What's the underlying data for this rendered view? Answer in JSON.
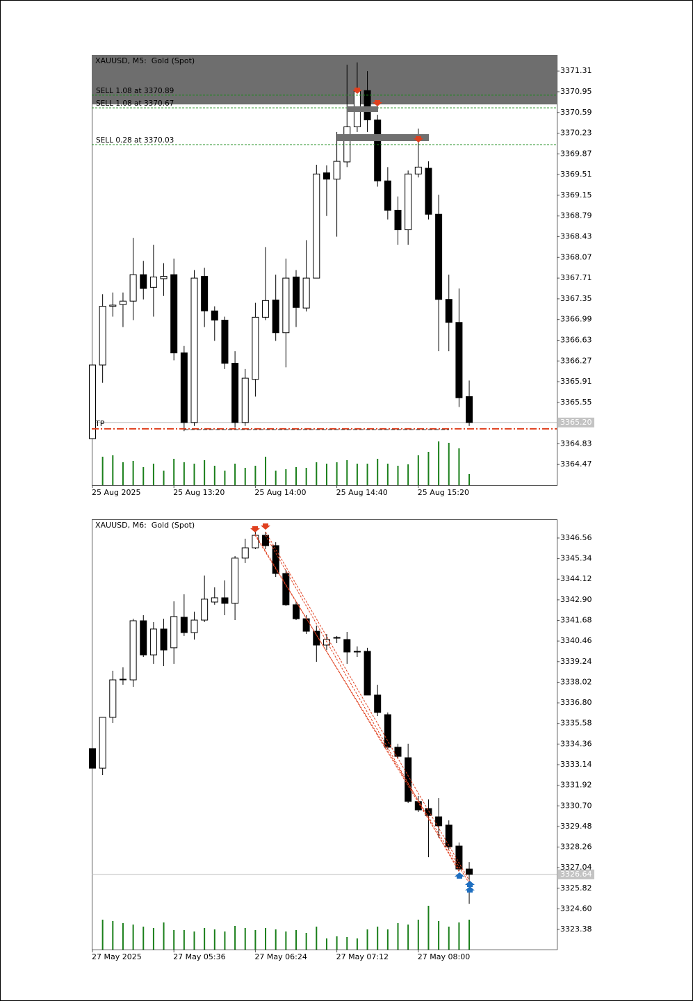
{
  "chart_data": [
    {
      "type": "candlestick",
      "title": "XAUUSD, M5:  Gold (Spot)",
      "categories": [
        "25 Aug 2025",
        null,
        null,
        null,
        null,
        null,
        null,
        null,
        "25 Aug 13:20",
        null,
        null,
        null,
        null,
        null,
        null,
        null,
        "25 Aug 14:00",
        null,
        null,
        null,
        null,
        null,
        null,
        null,
        "25 Aug 14:40",
        null,
        null,
        null,
        null,
        null,
        null,
        null,
        "25 Aug 15:20",
        null,
        null,
        null,
        null,
        null
      ],
      "open": [
        3364.92,
        3366.2,
        3367.22,
        3367.25,
        3367.31,
        3367.77,
        3367.55,
        3367.7,
        3367.77,
        3366.41,
        3365.2,
        3367.74,
        3367.14,
        3366.98,
        3366.23,
        3365.2,
        3365.95,
        3367.03,
        3367.33,
        3366.76,
        3367.73,
        3367.19,
        3367.71,
        3369.54,
        3369.43,
        3369.73,
        3370.34,
        3370.97,
        3370.46,
        3369.4,
        3368.89,
        3368.55,
        3369.52,
        3369.62,
        3368.82,
        3367.34,
        3366.94,
        3365.65
      ],
      "high": [
        3366.2,
        3367.43,
        3367.46,
        3367.46,
        3368.41,
        3368.01,
        3368.29,
        3367.97,
        3368.05,
        3366.53,
        3367.85,
        3367.89,
        3367.22,
        3367.04,
        3366.44,
        3366.13,
        3367.28,
        3368.25,
        3367.77,
        3368.05,
        3367.85,
        3368.37,
        3369.68,
        3369.67,
        3370.25,
        3371.42,
        3371.46,
        3371.31,
        3370.55,
        3369.64,
        3369.13,
        3369.58,
        3370.31,
        3369.74,
        3369.16,
        3367.77,
        3367.53,
        3365.93
      ],
      "low": [
        3364.92,
        3365.89,
        3367.04,
        3366.86,
        3366.98,
        3367.34,
        3367.04,
        3367.4,
        3366.28,
        3365.05,
        3365.14,
        3366.86,
        3366.62,
        3366.13,
        3365.11,
        3365.14,
        3365.65,
        3366.98,
        3366.62,
        3366.16,
        3366.86,
        3367.13,
        3367.71,
        3368.79,
        3368.43,
        3369.64,
        3370.25,
        3370.25,
        3369.3,
        3368.73,
        3368.29,
        3368.29,
        3369.46,
        3368.73,
        3366.44,
        3366.44,
        3365.47,
        3365.14
      ],
      "close": [
        3366.2,
        3367.22,
        3367.24,
        3367.31,
        3367.77,
        3367.53,
        3367.73,
        3367.74,
        3366.41,
        3365.2,
        3367.71,
        3367.14,
        3366.98,
        3366.23,
        3365.2,
        3365.97,
        3367.03,
        3367.32,
        3366.76,
        3367.71,
        3367.2,
        3367.71,
        3369.52,
        3369.43,
        3369.74,
        3370.34,
        3370.97,
        3370.46,
        3369.4,
        3368.89,
        3368.55,
        3369.52,
        3369.64,
        3368.82,
        3367.34,
        3366.94,
        3365.63,
        3365.2
      ],
      "volume": [
        null,
        41,
        43,
        33,
        35,
        26,
        31,
        21,
        38,
        33,
        31,
        36,
        28,
        21,
        31,
        25,
        28,
        41,
        21,
        23,
        26,
        25,
        33,
        31,
        33,
        36,
        31,
        31,
        38,
        31,
        28,
        30,
        43,
        48,
        63,
        61,
        53,
        16
      ],
      "ylim": [
        3364.11,
        3371.59
      ],
      "yticks": [
        3371.31,
        3370.95,
        3370.59,
        3370.23,
        3369.87,
        3369.51,
        3369.15,
        3368.79,
        3368.43,
        3368.07,
        3367.71,
        3367.35,
        3366.99,
        3366.63,
        3366.27,
        3365.91,
        3365.55,
        3364.83,
        3364.47
      ],
      "last_price": {
        "value": 3365.2,
        "label": "3365.20"
      },
      "zone": {
        "low": 3370.73
      },
      "orders": [
        {
          "label": "SELL 1.08 at 3370.89",
          "price": 3370.89
        },
        {
          "label": "SELL 1.08 at 3370.67",
          "price": 3370.67
        },
        {
          "label": "SELL 0.28 at 3370.03",
          "price": 3370.03
        }
      ],
      "tp": {
        "label": "TP",
        "price": 3365.09
      },
      "volume_color": "#1a7f1a"
    },
    {
      "type": "candlestick",
      "title": "XAUUSD, M6:  Gold (Spot)",
      "categories": [
        "27 May 2025",
        null,
        null,
        null,
        null,
        null,
        null,
        null,
        "27 May 05:36",
        null,
        null,
        null,
        null,
        null,
        null,
        null,
        "27 May 06:24",
        null,
        null,
        null,
        null,
        null,
        null,
        null,
        "27 May 07:12",
        null,
        null,
        null,
        null,
        null,
        null,
        null,
        "27 May 08:00",
        null,
        null,
        null,
        null,
        null
      ],
      "open": [
        3334.09,
        3332.93,
        3335.94,
        3338.16,
        3338.16,
        3341.66,
        3339.64,
        3341.17,
        3340.06,
        3341.87,
        3340.96,
        3341.7,
        3342.77,
        3343.02,
        3342.69,
        3345.37,
        3345.98,
        3346.72,
        3346.11,
        3344.46,
        3342.61,
        3341.78,
        3341.04,
        3340.22,
        3340.67,
        3340.55,
        3339.85,
        3339.85,
        3337.26,
        3336.1,
        3334.17,
        3333.55,
        3330.96,
        3330.54,
        3330.05,
        3329.56,
        3328.32,
        3326.96
      ],
      "high": [
        3334.09,
        3335.94,
        3338.7,
        3338.9,
        3341.78,
        3341.99,
        3341.58,
        3341.78,
        3342.81,
        3343.23,
        3342.2,
        3344.34,
        3343.64,
        3344.05,
        3345.49,
        3346.52,
        3346.93,
        3346.93,
        3346.31,
        3344.67,
        3342.81,
        3341.99,
        3341.37,
        3340.88,
        3340.76,
        3341.0,
        3340.14,
        3340.06,
        3337.87,
        3336.23,
        3334.38,
        3334.38,
        3331.29,
        3331.08,
        3331.16,
        3329.84,
        3328.53,
        3327.37
      ],
      "low": [
        3332.93,
        3332.52,
        3335.61,
        3337.87,
        3337.75,
        3339.52,
        3339.11,
        3338.98,
        3339.11,
        3340.76,
        3340.55,
        3341.58,
        3342.61,
        3341.99,
        3341.7,
        3345.08,
        3345.9,
        3345.9,
        3344.25,
        3342.53,
        3341.7,
        3340.88,
        3339.23,
        3339.93,
        3340.34,
        3339.11,
        3339.52,
        3337.26,
        3336.02,
        3334.05,
        3333.47,
        3330.87,
        3330.34,
        3327.66,
        3328.82,
        3328.12,
        3326.84,
        3324.9
      ],
      "close": [
        3332.93,
        3335.94,
        3338.16,
        3338.2,
        3341.66,
        3339.64,
        3341.17,
        3339.93,
        3341.91,
        3340.96,
        3341.7,
        3342.94,
        3343.02,
        3342.69,
        3345.37,
        3345.98,
        3346.72,
        3346.11,
        3344.46,
        3342.61,
        3341.78,
        3341.04,
        3340.22,
        3340.55,
        3340.63,
        3339.81,
        3339.81,
        3337.26,
        3336.23,
        3334.17,
        3333.63,
        3330.96,
        3330.46,
        3330.13,
        3329.52,
        3328.28,
        3326.96,
        3326.64
      ],
      "volume": [
        null,
        43,
        41,
        38,
        36,
        33,
        31,
        39,
        28,
        28,
        26,
        31,
        29,
        26,
        34,
        31,
        28,
        31,
        29,
        26,
        28,
        24,
        33,
        16,
        19,
        18,
        16,
        29,
        33,
        29,
        38,
        36,
        43,
        63,
        41,
        33,
        39,
        43
      ],
      "ylim": [
        3322.19,
        3347.67
      ],
      "yticks": [
        3346.56,
        3345.34,
        3344.12,
        {
          "value": 3342.9,
          "label": "3342.90"
        },
        3341.68,
        3340.46,
        3339.24,
        3338.02,
        {
          "value": 3336.8,
          "label": "3336.80"
        },
        3335.58,
        3334.36,
        3333.14,
        3331.92,
        {
          "value": 3330.7,
          "label": "3330.70"
        },
        3329.48,
        3328.26,
        3327.04,
        3325.82,
        {
          "value": 3324.6,
          "label": "3324.60"
        },
        3323.38
      ],
      "last_price": {
        "value": 3326.64,
        "label": "3326.64"
      },
      "volume_color": "#1a7f1a"
    }
  ]
}
